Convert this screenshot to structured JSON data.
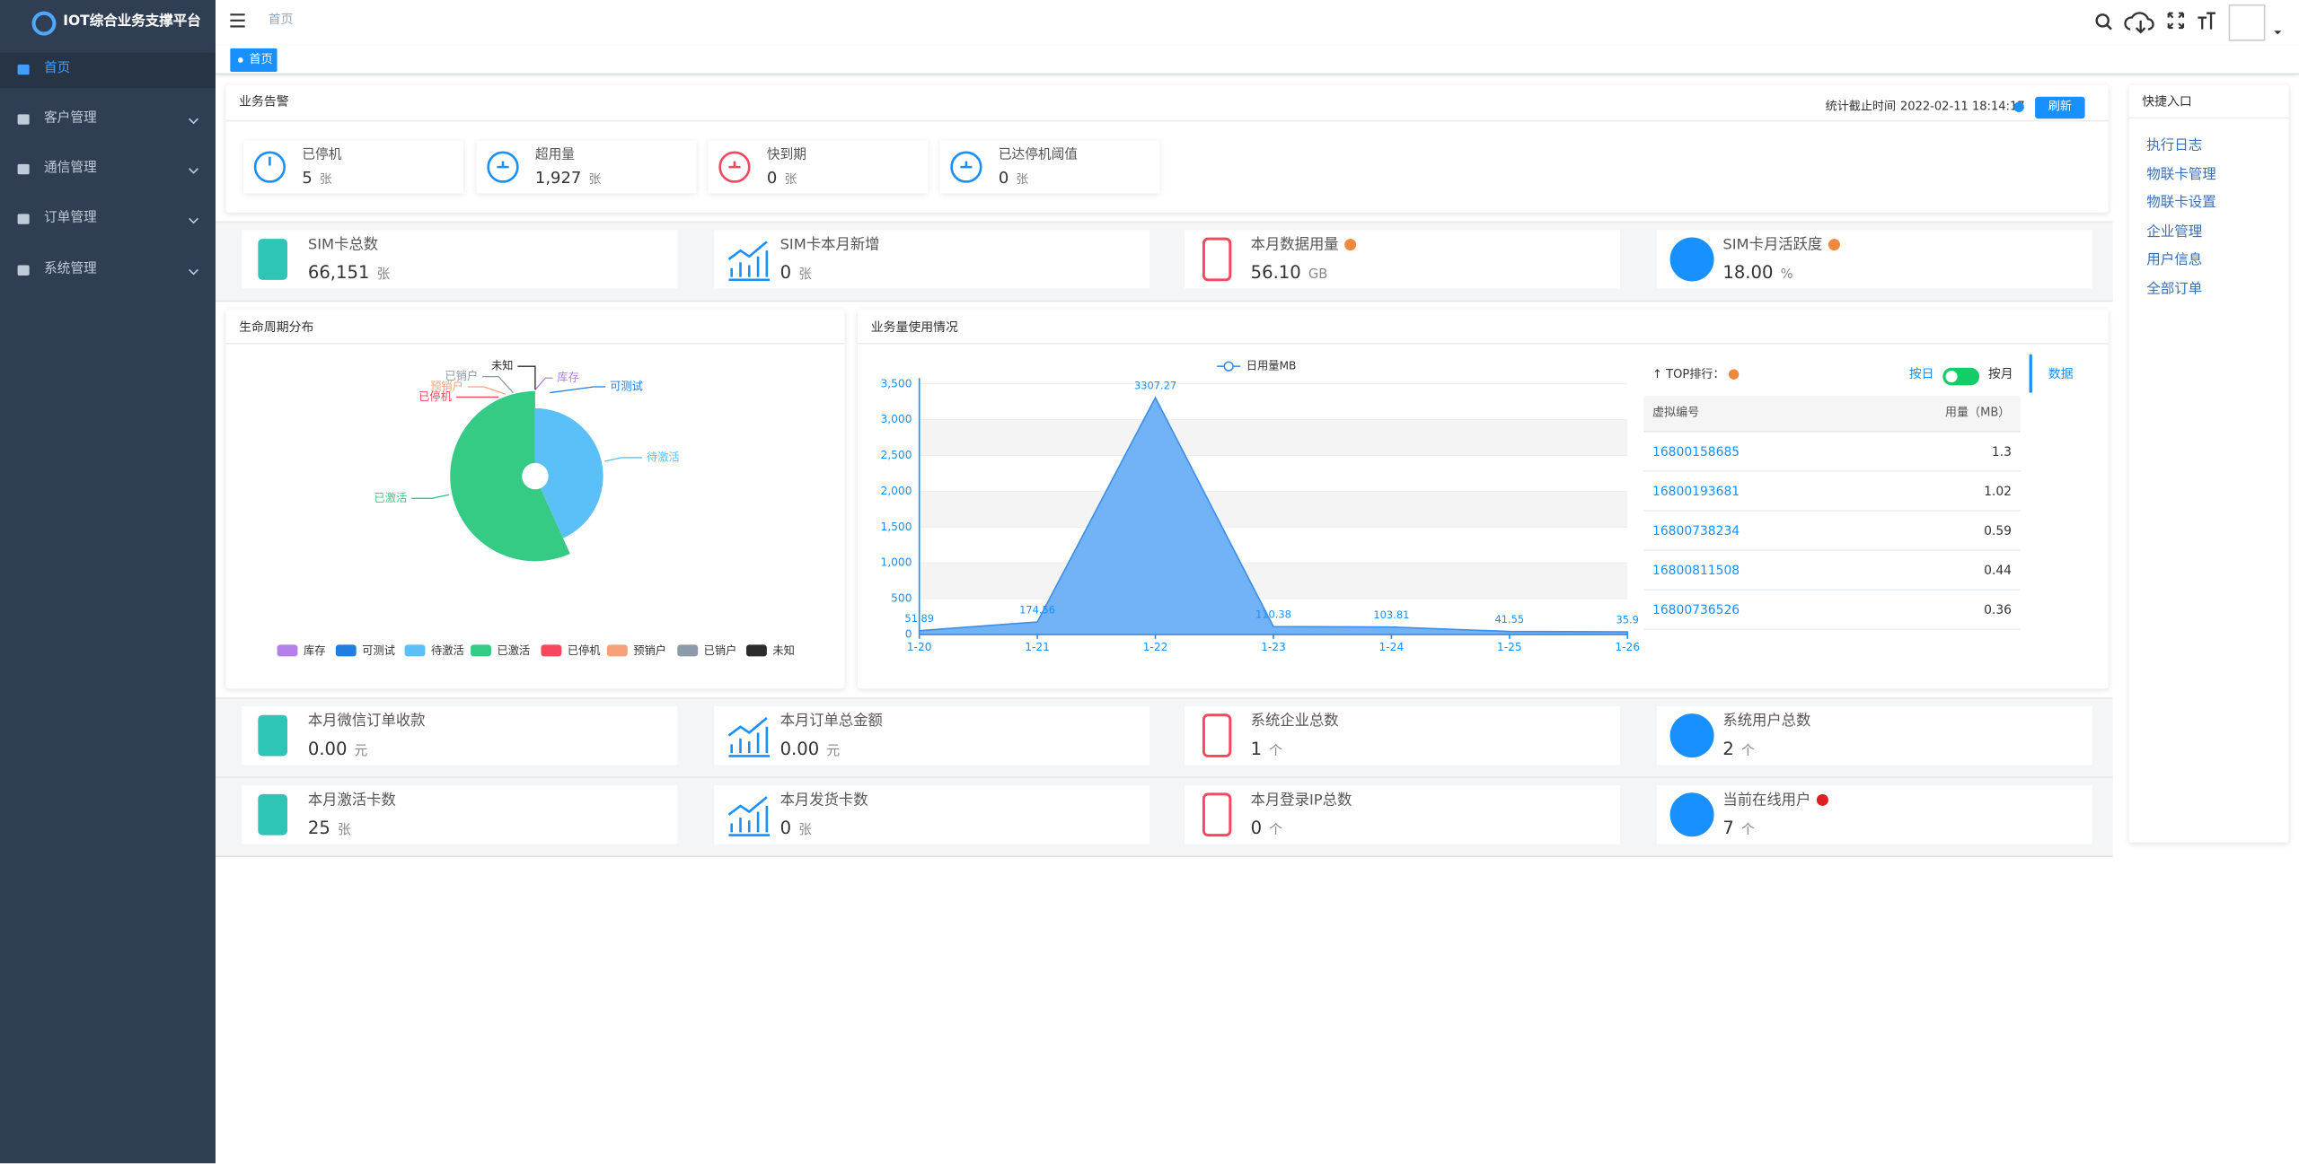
{
  "sidebar": {
    "title": "IOT综合业务支撑平台",
    "menu": [
      "首页",
      "客户管理",
      "通信管理",
      "订单管理",
      "系统管理"
    ]
  },
  "header": {
    "breadcrumb": "首页",
    "tab": "首页"
  },
  "alarm": {
    "title": "业务告警",
    "stat_time_label": "统计截止时间",
    "stat_time": "2022-02-11 18:14:17",
    "refresh": "刷新",
    "items": [
      {
        "label": "已停机",
        "value": "5",
        "unit": "张"
      },
      {
        "label": "超用量",
        "value": "1,927",
        "unit": "张"
      },
      {
        "label": "快到期",
        "value": "0",
        "unit": "张"
      },
      {
        "label": "已达停机阈值",
        "value": "0",
        "unit": "张"
      }
    ]
  },
  "stats": [
    {
      "label": "SIM卡总数",
      "value": "66,151",
      "unit": "张"
    },
    {
      "label": "SIM卡本月新增",
      "value": "0",
      "unit": "张"
    },
    {
      "label": "本月数据用量",
      "value": "56.10",
      "unit": "GB",
      "help": "#f0883e"
    },
    {
      "label": "SIM卡月活跃度",
      "value": "18.00",
      "unit": "%",
      "help": "#f0883e"
    },
    {
      "label": "本月微信订单收款",
      "value": "0.00",
      "unit": "元"
    },
    {
      "label": "本月订单总金额",
      "value": "0.00",
      "unit": "元"
    },
    {
      "label": "系统企业总数",
      "value": "1",
      "unit": "个"
    },
    {
      "label": "系统用户总数",
      "value": "2",
      "unit": "个"
    },
    {
      "label": "本月激活卡数",
      "value": "25",
      "unit": "张"
    },
    {
      "label": "本月发货卡数",
      "value": "0",
      "unit": "张"
    },
    {
      "label": "本月登录IP总数",
      "value": "0",
      "unit": "个"
    },
    {
      "label": "当前在线用户",
      "value": "7",
      "unit": "个",
      "help": "#e02020"
    }
  ],
  "chart_data": [
    {
      "type": "pie",
      "title": "生命周期分布",
      "rose": true,
      "categories": [
        "库存",
        "可测试",
        "待激活",
        "已激活",
        "已停机",
        "预销户",
        "已销户",
        "未知"
      ],
      "values": [
        0,
        0,
        28600,
        37500,
        0,
        0,
        0,
        0
      ],
      "colors": [
        "#b37feb",
        "#1e7fe0",
        "#5bc0f8",
        "#36cb85",
        "#f5475d",
        "#f5a27a",
        "#8c9aab",
        "#2b2b2b"
      ]
    },
    {
      "type": "area",
      "title": "业务量使用情况",
      "categories": [
        "1-20",
        "1-21",
        "1-22",
        "1-23",
        "1-24",
        "1-25",
        "1-26"
      ],
      "series": [
        {
          "name": "日用量MB",
          "color": "#6aaef7",
          "values": [
            51.89,
            174.56,
            3307.27,
            110.38,
            103.81,
            41.55,
            35.9
          ]
        }
      ],
      "ylim": [
        0,
        3500
      ],
      "yticks": [
        0,
        500,
        {
          "value": 1000,
          "label": "1,000"
        },
        {
          "value": 1500,
          "label": "1,500"
        },
        {
          "value": 2000,
          "label": "2,000"
        },
        {
          "value": 2500,
          "label": "2,500"
        },
        {
          "value": 3000,
          "label": "3,000"
        },
        {
          "value": 3500,
          "label": "3,500"
        }
      ],
      "grid": true
    }
  ],
  "top_ranking": {
    "title": "↑ TOP排行：",
    "toggle_day": "按日",
    "toggle_month": "按月",
    "data_tab": "数据",
    "columns": [
      "虚拟编号",
      "用量（MB）"
    ],
    "rows": [
      [
        "16800158685",
        "1.3"
      ],
      [
        "16800193681",
        "1.02"
      ],
      [
        "16800738234",
        "0.59"
      ],
      [
        "16800811508",
        "0.44"
      ],
      [
        "16800736526",
        "0.36"
      ]
    ]
  },
  "quick_links": {
    "title": "快捷入口",
    "links": [
      "执行日志",
      "物联卡管理",
      "物联卡设置",
      "企业管理",
      "用户信息",
      "全部订单"
    ]
  }
}
